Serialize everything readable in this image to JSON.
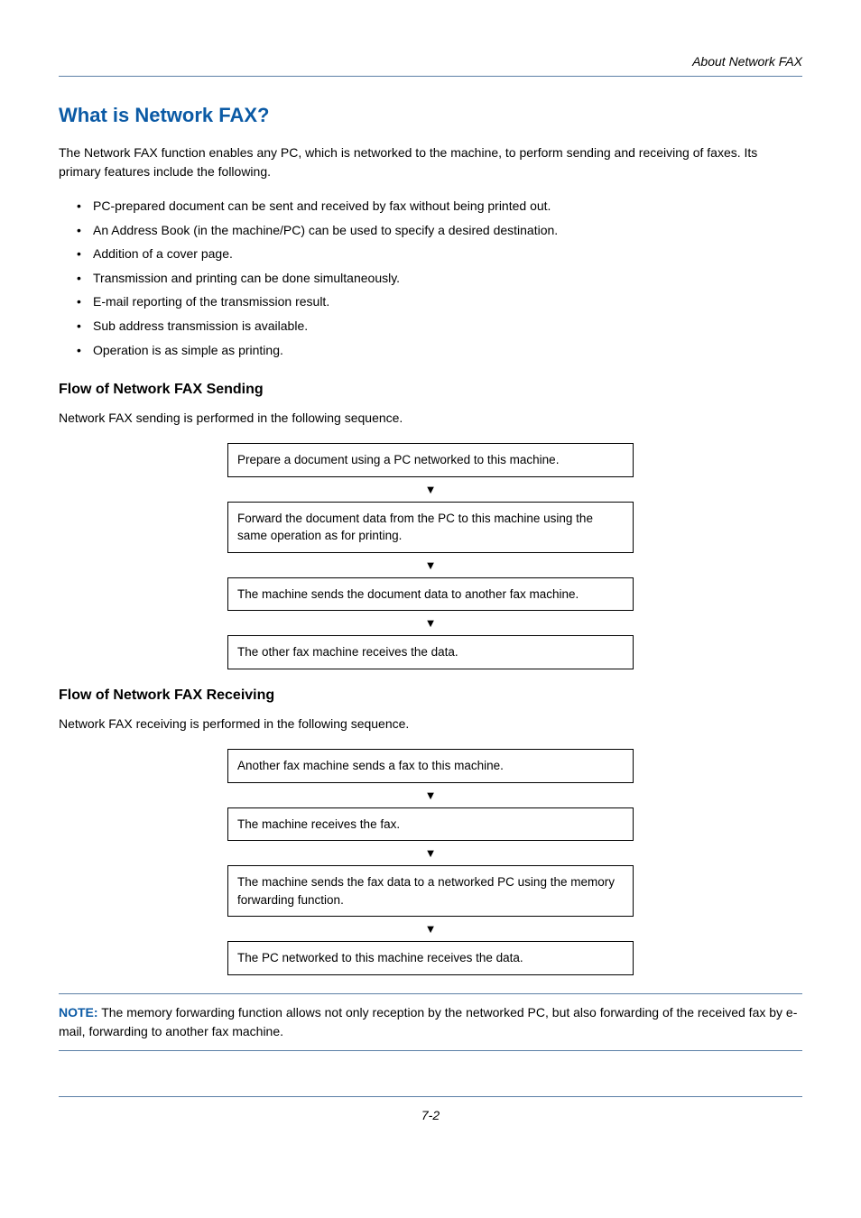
{
  "header": {
    "section_title": "About Network FAX"
  },
  "heading": "What is Network FAX?",
  "intro": "The Network FAX function enables any PC, which is networked to the machine, to perform sending and receiving of faxes. Its primary features include the following.",
  "features": [
    "PC-prepared document can be sent and received by fax without being printed out.",
    "An Address Book (in the machine/PC) can be used to specify a desired destination.",
    "Addition of a cover page.",
    "Transmission and printing can be done simultaneously.",
    "E-mail reporting of the transmission result.",
    "Sub address transmission is available.",
    "Operation is as simple as printing."
  ],
  "sending": {
    "title": "Flow of Network FAX Sending",
    "intro": "Network FAX sending is performed in the following sequence.",
    "steps": [
      "Prepare a document using a PC networked to this machine.",
      "Forward the document data from the PC to this machine using the same operation as for printing.",
      "The machine sends the document data to another fax machine.",
      "The other fax machine receives the data."
    ]
  },
  "receiving": {
    "title": "Flow of Network FAX Receiving",
    "intro": "Network FAX receiving is performed in the following sequence.",
    "steps": [
      "Another fax machine sends a fax to this machine.",
      "The machine receives the fax.",
      "The machine sends the fax data to a networked PC using the memory forwarding function.",
      "The PC networked to this machine receives the data."
    ]
  },
  "note": {
    "label": "NOTE:",
    "text": " The memory forwarding function allows not only reception by the networked PC, but also forwarding of the received fax by e-mail, forwarding to another fax machine."
  },
  "footer": {
    "page_number": "7-2"
  },
  "arrow_glyph": "▼"
}
